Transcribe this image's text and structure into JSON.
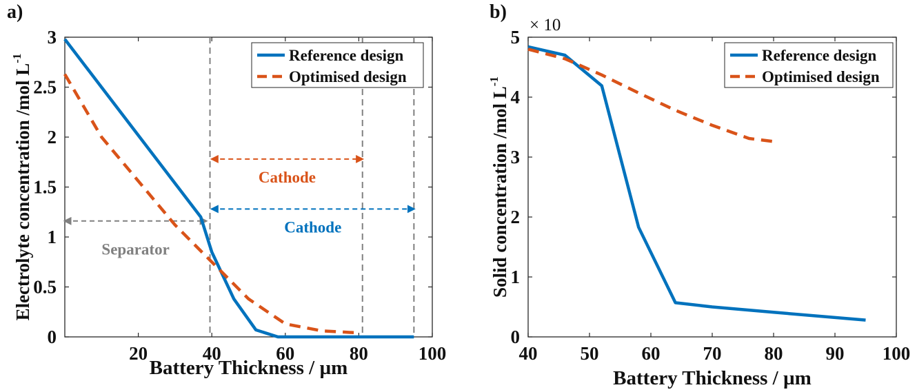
{
  "colors": {
    "reference": "#0072BD",
    "optimised": "#D95319",
    "guide": "#808080"
  },
  "chart_data": [
    {
      "panel_label": "a)",
      "type": "line",
      "xlabel": "Battery Thickness / µm",
      "ylabel": "Electrolyte concentration /mol L",
      "ylabel_sup": "-1",
      "xlim": [
        0,
        100
      ],
      "ylim": [
        0,
        3
      ],
      "xticks": [
        20,
        40,
        60,
        80,
        100
      ],
      "yticks": [
        0,
        0.5,
        1,
        1.5,
        2,
        2.5,
        3
      ],
      "ytick_labels": [
        "0",
        "0.5",
        "1",
        "1.5",
        "2",
        "2.5",
        "3"
      ],
      "legend": "top-right",
      "series": [
        {
          "name": "Reference design",
          "style": "solid",
          "color": "#0072BD",
          "x": [
            0,
            37,
            40,
            46,
            52,
            58,
            95
          ],
          "y": [
            2.98,
            1.2,
            0.85,
            0.38,
            0.07,
            0.0,
            0.0
          ]
        },
        {
          "name": "Optimised design",
          "style": "dashed",
          "color": "#D95319",
          "x": [
            0,
            10,
            20,
            30,
            40,
            50,
            60,
            70,
            80
          ],
          "y": [
            2.63,
            2.0,
            1.56,
            1.12,
            0.75,
            0.38,
            0.13,
            0.06,
            0.04
          ]
        }
      ],
      "vlines": [
        39.5,
        81,
        95
      ],
      "annotations": [
        {
          "text": "Cathode",
          "color": "#D95319",
          "x_from": 40,
          "x_to": 81,
          "y_arrow": 1.78,
          "y_text": 1.6
        },
        {
          "text": "Cathode",
          "color": "#0072BD",
          "x_from": 40,
          "x_to": 95,
          "y_arrow": 1.28,
          "y_text": 1.1
        },
        {
          "text": "Separator",
          "color": "#808080",
          "x_from": 0,
          "x_to": 38.5,
          "y_arrow": 1.16,
          "y_text": 0.88
        }
      ]
    },
    {
      "panel_label": "b)",
      "type": "line",
      "xlabel": "Battery Thickness / µm",
      "ylabel": "Solid concentration /mol L",
      "ylabel_sup": "-1",
      "multiplier": "× 10",
      "xlim": [
        40,
        100
      ],
      "ylim": [
        0,
        5
      ],
      "xticks": [
        40,
        50,
        60,
        70,
        80,
        90,
        100
      ],
      "yticks": [
        0,
        1,
        2,
        3,
        4,
        5
      ],
      "ytick_labels": [
        "0",
        "1",
        "2",
        "3",
        "4",
        "5"
      ],
      "legend": "top-right",
      "series": [
        {
          "name": "Reference design",
          "style": "solid",
          "color": "#0072BD",
          "x": [
            40,
            46,
            52,
            58,
            64,
            70,
            80,
            95
          ],
          "y": [
            4.84,
            4.7,
            4.19,
            1.83,
            0.57,
            0.5,
            0.41,
            0.28
          ]
        },
        {
          "name": "Optimised design",
          "style": "dashed",
          "color": "#D95319",
          "x": [
            40,
            46,
            52,
            58,
            64,
            70,
            76,
            80
          ],
          "y": [
            4.8,
            4.64,
            4.37,
            4.07,
            3.78,
            3.53,
            3.31,
            3.26
          ]
        }
      ]
    }
  ]
}
